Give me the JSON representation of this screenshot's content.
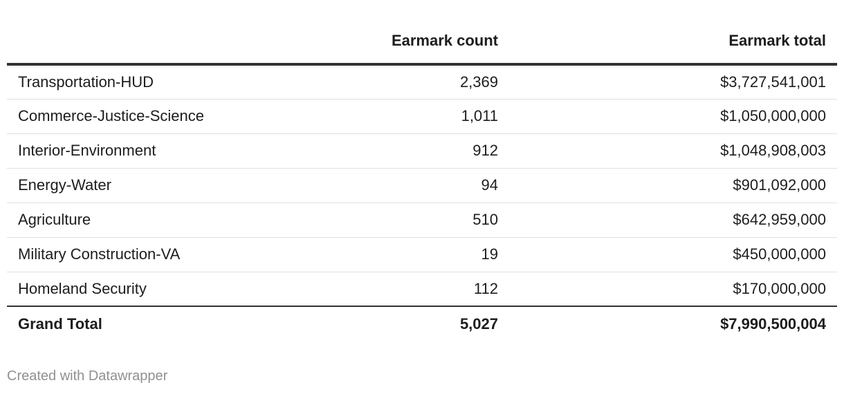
{
  "chart_data": {
    "type": "table",
    "columns": [
      "",
      "Earmark count",
      "Earmark total"
    ],
    "rows": [
      {
        "name": "Transportation-HUD",
        "count": "2,369",
        "total": "$3,727,541,001"
      },
      {
        "name": "Commerce-Justice-Science",
        "count": "1,011",
        "total": "$1,050,000,000"
      },
      {
        "name": "Interior-Environment",
        "count": "912",
        "total": "$1,048,908,003"
      },
      {
        "name": "Energy-Water",
        "count": "94",
        "total": "$901,092,000"
      },
      {
        "name": "Agriculture",
        "count": "510",
        "total": "$642,959,000"
      },
      {
        "name": "Military Construction-VA",
        "count": "19",
        "total": "$450,000,000"
      },
      {
        "name": "Homeland Security",
        "count": "112",
        "total": "$170,000,000"
      }
    ],
    "total_row": {
      "name": "Grand Total",
      "count": "5,027",
      "total": "$7,990,500,004"
    }
  },
  "footer": {
    "credit": "Created with Datawrapper"
  },
  "colors": {
    "text": "#1d1d1d",
    "header_rule": "#333333",
    "row_rule": "#e0e0e0",
    "credit": "#909090"
  }
}
